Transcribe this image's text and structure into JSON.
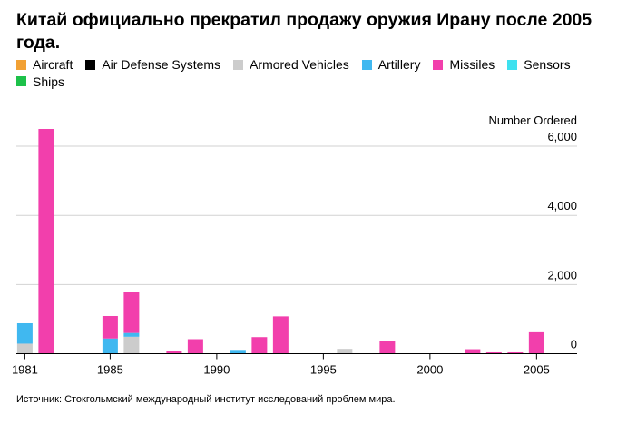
{
  "title": "Китай официально прекратил продажу оружия Ирану после 2005 года.",
  "source": "Источник: Стокгольмский международный институт исследований проблем мира.",
  "colors": {
    "Aircraft": "#f2a134",
    "Air Defense Systems": "#000000",
    "Armored Vehicles": "#cccccc",
    "Artillery": "#40b8f0",
    "Missiles": "#f23fac",
    "Sensors": "#3ee1ef",
    "Ships": "#1dc14a"
  },
  "chart_data": {
    "type": "bar",
    "stacked": true,
    "title": "Китай официально прекратил продажу оружия Ирану после 2005 года.",
    "ylabel": "Number Ordered",
    "ylim": [
      0,
      6500
    ],
    "yticks": [
      "0",
      "2,000",
      "4,000",
      "6,000"
    ],
    "ytick_values": [
      0,
      2000,
      4000,
      6000
    ],
    "xticks": [
      "1981",
      "1985",
      "1990",
      "1995",
      "2000",
      "2005"
    ],
    "xtick_values": [
      1981,
      1985,
      1990,
      1995,
      2000,
      2005
    ],
    "xlim": [
      1980.6,
      2006.9
    ],
    "grid": true,
    "legend": "top",
    "categories": [
      1981,
      1982,
      1985,
      1986,
      1988,
      1989,
      1991,
      1992,
      1993,
      1996,
      1998,
      2002,
      2003,
      2004,
      2005
    ],
    "series": [
      {
        "name": "Aircraft",
        "values": [
          0,
          0,
          0,
          0,
          0,
          0,
          0,
          0,
          0,
          0,
          0,
          0,
          0,
          0,
          0
        ]
      },
      {
        "name": "Air Defense Systems",
        "values": [
          0,
          0,
          0,
          0,
          0,
          0,
          0,
          0,
          0,
          0,
          0,
          0,
          0,
          0,
          0
        ]
      },
      {
        "name": "Armored Vehicles",
        "values": [
          290,
          0,
          0,
          490,
          0,
          0,
          0,
          0,
          0,
          140,
          0,
          0,
          0,
          0,
          0
        ]
      },
      {
        "name": "Artillery",
        "values": [
          590,
          0,
          440,
          110,
          0,
          0,
          110,
          0,
          0,
          0,
          0,
          0,
          0,
          0,
          0
        ]
      },
      {
        "name": "Missiles",
        "values": [
          0,
          6500,
          650,
          1180,
          80,
          420,
          0,
          480,
          1080,
          0,
          380,
          130,
          40,
          40,
          620
        ]
      },
      {
        "name": "Sensors",
        "values": [
          0,
          0,
          0,
          0,
          0,
          0,
          0,
          0,
          0,
          0,
          0,
          0,
          0,
          0,
          0
        ]
      },
      {
        "name": "Ships",
        "values": [
          0,
          0,
          0,
          0,
          0,
          0,
          0,
          0,
          0,
          0,
          0,
          0,
          0,
          0,
          0
        ]
      }
    ]
  }
}
